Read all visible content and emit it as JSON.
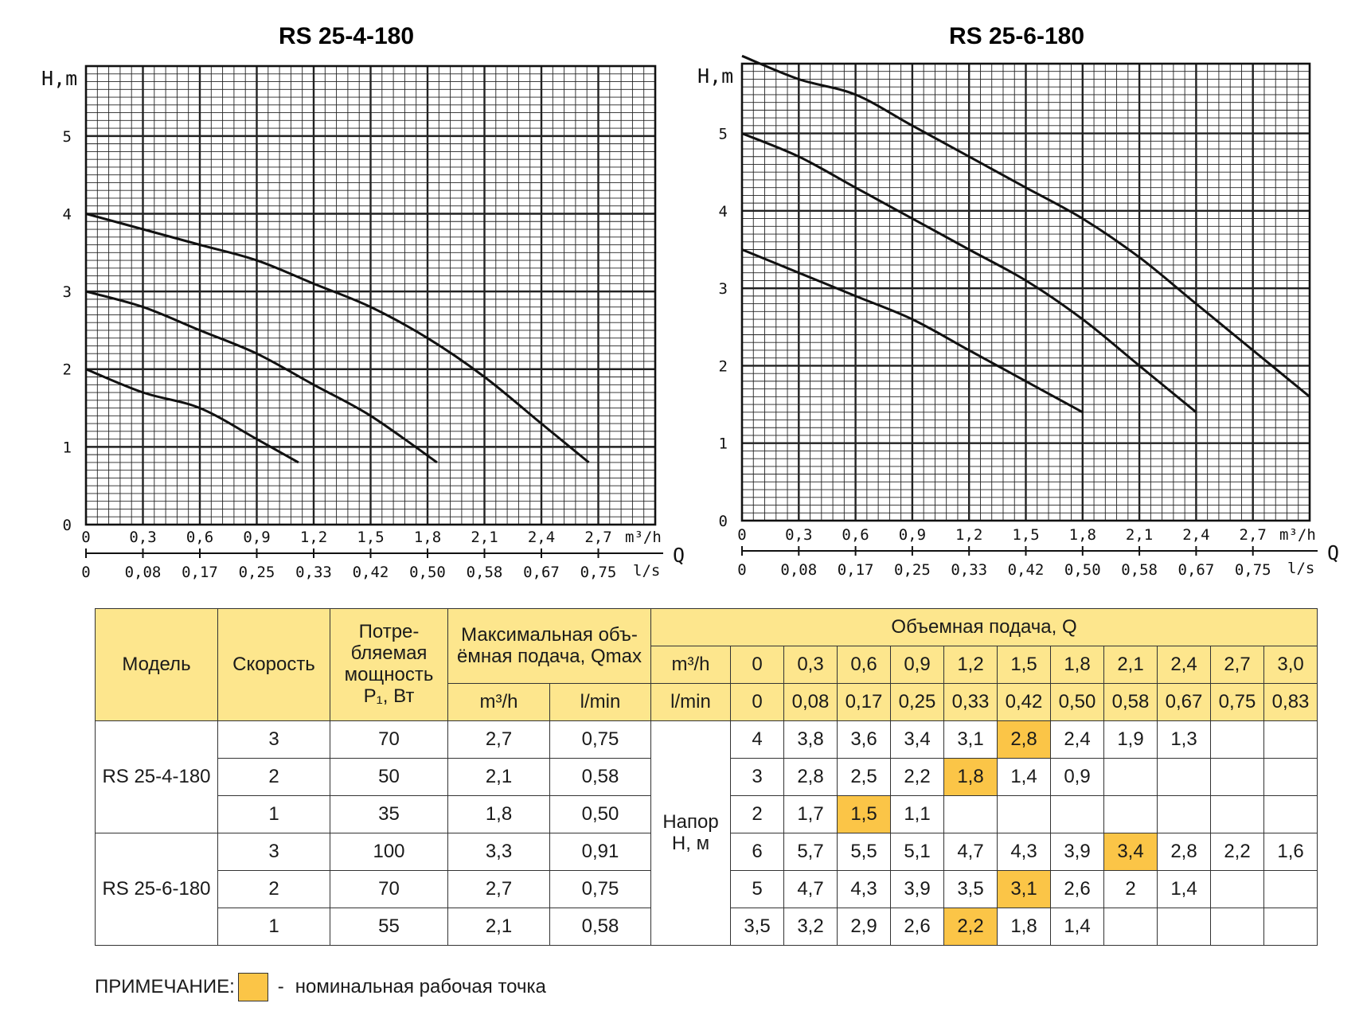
{
  "chart_data": [
    {
      "type": "line",
      "title": "RS 25-4-180",
      "ylabel": "H,m",
      "xlabel": "Q",
      "x_unit_top": "m³/h",
      "x_unit_bottom": "l/s",
      "ylim": [
        0,
        5.9
      ],
      "xlim": [
        0,
        3.0
      ],
      "y_ticks": [
        "0",
        "1",
        "2",
        "3",
        "4",
        "5"
      ],
      "x_ticks_top": [
        "0",
        "0,3",
        "0,6",
        "0,9",
        "1,2",
        "1,5",
        "1,8",
        "2,1",
        "2,4",
        "2,7"
      ],
      "x_ticks_bottom": [
        "0",
        "0,08",
        "0,17",
        "0,25",
        "0,33",
        "0,42",
        "0,50",
        "0,58",
        "0,67",
        "0,75"
      ],
      "grid": true,
      "series": [
        {
          "x": [
            0,
            0.3,
            0.6,
            0.9,
            1.2,
            1.5,
            1.8,
            2.1,
            2.4,
            2.65
          ],
          "y": [
            4,
            3.8,
            3.6,
            3.4,
            3.1,
            2.8,
            2.4,
            1.9,
            1.3,
            0.8
          ]
        },
        {
          "x": [
            0,
            0.3,
            0.6,
            0.9,
            1.2,
            1.5,
            1.85
          ],
          "y": [
            3,
            2.8,
            2.5,
            2.2,
            1.8,
            1.4,
            0.8
          ]
        },
        {
          "x": [
            0,
            0.3,
            0.6,
            0.9,
            1.12
          ],
          "y": [
            2,
            1.7,
            1.5,
            1.1,
            0.8
          ]
        }
      ]
    },
    {
      "type": "line",
      "title": "RS 25-6-180",
      "ylabel": "H,m",
      "xlabel": "Q",
      "x_unit_top": "m³/h",
      "x_unit_bottom": "l/s",
      "ylim": [
        0,
        5.9
      ],
      "xlim": [
        0,
        3.0
      ],
      "y_ticks": [
        "0",
        "1",
        "2",
        "3",
        "4",
        "5"
      ],
      "x_ticks_top": [
        "0",
        "0,3",
        "0,6",
        "0,9",
        "1,2",
        "1,5",
        "1,8",
        "2,1",
        "2,4",
        "2,7"
      ],
      "x_ticks_bottom": [
        "0",
        "0,08",
        "0,17",
        "0,25",
        "0,33",
        "0,42",
        "0,50",
        "0,58",
        "0,67",
        "0,75"
      ],
      "grid": true,
      "series": [
        {
          "x": [
            0,
            0.3,
            0.6,
            0.9,
            1.2,
            1.5,
            1.8,
            2.1,
            2.4,
            2.7,
            3.0
          ],
          "y": [
            6,
            5.7,
            5.5,
            5.1,
            4.7,
            4.3,
            3.9,
            3.4,
            2.8,
            2.2,
            1.6
          ]
        },
        {
          "x": [
            0,
            0.3,
            0.6,
            0.9,
            1.2,
            1.5,
            1.8,
            2.1,
            2.4
          ],
          "y": [
            5,
            4.7,
            4.3,
            3.9,
            3.5,
            3.1,
            2.6,
            2,
            1.4
          ]
        },
        {
          "x": [
            0,
            0.3,
            0.6,
            0.9,
            1.2,
            1.5,
            1.8
          ],
          "y": [
            3.5,
            3.2,
            2.9,
            2.6,
            2.2,
            1.8,
            1.4
          ]
        }
      ]
    }
  ],
  "table": {
    "h_model": "Модель",
    "h_speed": "Скорость",
    "h_power": "Потре-\nбляемая\nмощность\nP₁, Вт",
    "h_qmax": "Максимальная объ-\nёмная подача, Qmax",
    "h_qmax_m3": "m³/h",
    "h_qmax_lmin": "l/min",
    "h_flow": "Объемная подача, Q",
    "h_flow_m3": "m³/h",
    "h_flow_lmin": "l/min",
    "flow_m3_values": [
      "0",
      "0,3",
      "0,6",
      "0,9",
      "1,2",
      "1,5",
      "1,8",
      "2,1",
      "2,4",
      "2,7",
      "3,0"
    ],
    "flow_lmin_values": [
      "0",
      "0,08",
      "0,17",
      "0,25",
      "0,33",
      "0,42",
      "0,50",
      "0,58",
      "0,67",
      "0,75",
      "0,83"
    ],
    "head_label": "Напор\nH, м",
    "models": [
      {
        "name": "RS 25-4-180",
        "rows": [
          {
            "speed": "3",
            "power": "70",
            "qmax_m3": "2,7",
            "qmax_lmin": "0,75",
            "head": [
              "4",
              "3,8",
              "3,6",
              "3,4",
              "3,1",
              "2,8",
              "2,4",
              "1,9",
              "1,3",
              "",
              ""
            ],
            "highlight": 5
          },
          {
            "speed": "2",
            "power": "50",
            "qmax_m3": "2,1",
            "qmax_lmin": "0,58",
            "head": [
              "3",
              "2,8",
              "2,5",
              "2,2",
              "1,8",
              "1,4",
              "0,9",
              "",
              "",
              "",
              ""
            ],
            "highlight": 4
          },
          {
            "speed": "1",
            "power": "35",
            "qmax_m3": "1,8",
            "qmax_lmin": "0,50",
            "head": [
              "2",
              "1,7",
              "1,5",
              "1,1",
              "",
              "",
              "",
              "",
              "",
              "",
              ""
            ],
            "highlight": 2
          }
        ]
      },
      {
        "name": "RS 25-6-180",
        "rows": [
          {
            "speed": "3",
            "power": "100",
            "qmax_m3": "3,3",
            "qmax_lmin": "0,91",
            "head": [
              "6",
              "5,7",
              "5,5",
              "5,1",
              "4,7",
              "4,3",
              "3,9",
              "3,4",
              "2,8",
              "2,2",
              "1,6"
            ],
            "highlight": 7
          },
          {
            "speed": "2",
            "power": "70",
            "qmax_m3": "2,7",
            "qmax_lmin": "0,75",
            "head": [
              "5",
              "4,7",
              "4,3",
              "3,9",
              "3,5",
              "3,1",
              "2,6",
              "2",
              "1,4",
              "",
              ""
            ],
            "highlight": 5
          },
          {
            "speed": "1",
            "power": "55",
            "qmax_m3": "2,1",
            "qmax_lmin": "0,58",
            "head": [
              "3,5",
              "3,2",
              "2,9",
              "2,6",
              "2,2",
              "1,8",
              "1,4",
              "",
              "",
              "",
              ""
            ],
            "highlight": 4
          }
        ]
      }
    ]
  },
  "note": {
    "label": "ПРИМЕЧАНИЕ:",
    "dash": "-",
    "text": "номинальная рабочая точка"
  },
  "colors": {
    "header_bg": "#fde68d",
    "highlight": "#fbc547",
    "line": "#111111"
  }
}
